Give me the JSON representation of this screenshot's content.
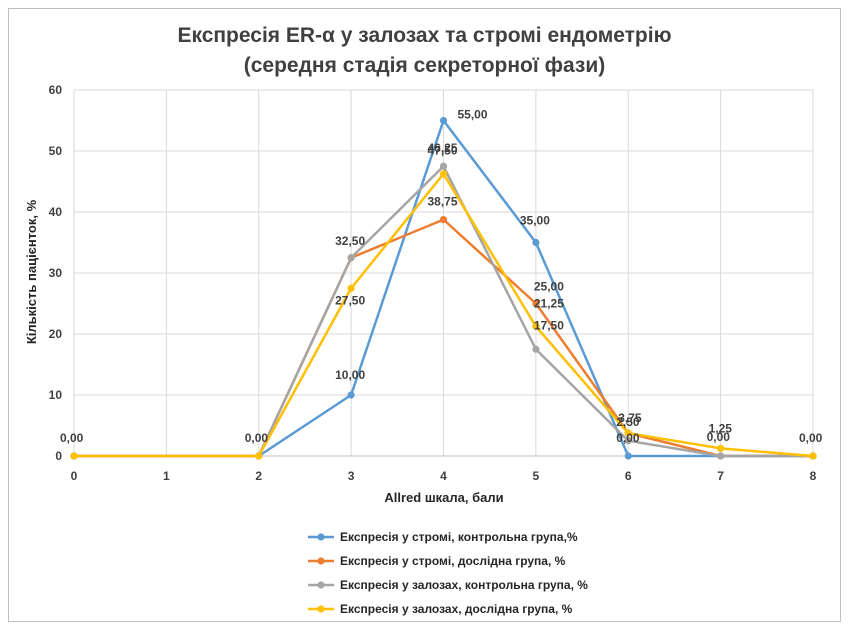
{
  "chart_data": {
    "type": "line",
    "title": "Експресія ER-α у залозах та стромі ендометрію",
    "subtitle": "(середня стадія секреторної фази)",
    "xlabel": "Allred шкала, бали",
    "ylabel": "Кількість пацієнток, %",
    "x": [
      0,
      1,
      2,
      3,
      4,
      5,
      6,
      7,
      8
    ],
    "xlim": [
      0,
      8
    ],
    "ylim": [
      0,
      60
    ],
    "yticks": [
      0,
      10,
      20,
      30,
      40,
      50,
      60
    ],
    "grid": true,
    "legend_position": "bottom",
    "series": [
      {
        "name": "Експресія у стромі, контрольна група,%",
        "color": "#5b9bd5",
        "points": [
          [
            0,
            0
          ],
          [
            2,
            0
          ],
          [
            3,
            10
          ],
          [
            4,
            55
          ],
          [
            5,
            35
          ],
          [
            6,
            0
          ],
          [
            8,
            0
          ]
        ],
        "labels": [
          null,
          "0,00",
          "10,00",
          "55,00",
          "35,00",
          "0,00",
          null
        ]
      },
      {
        "name": "Експресія у стромі, дослідна група, %",
        "color": "#ed7d31",
        "points": [
          [
            0,
            0
          ],
          [
            2,
            0
          ],
          [
            3,
            32.5
          ],
          [
            4,
            38.75
          ],
          [
            5,
            25
          ],
          [
            6,
            3.75
          ],
          [
            7,
            0
          ],
          [
            8,
            0
          ]
        ],
        "labels": [
          null,
          null,
          "32,50",
          "38,75",
          "25,00",
          "3,75",
          null,
          null
        ]
      },
      {
        "name": "Експресія у залозах, контрольна група, %",
        "color": "#a5a5a5",
        "points": [
          [
            0,
            0
          ],
          [
            2,
            0
          ],
          [
            3,
            32.5
          ],
          [
            4,
            47.5
          ],
          [
            5,
            17.5
          ],
          [
            6,
            2.5
          ],
          [
            7,
            0
          ],
          [
            8,
            0
          ]
        ],
        "labels": [
          null,
          null,
          null,
          "47,50",
          "17,50",
          "2,50",
          "0,00",
          null
        ]
      },
      {
        "name": "Експресія у залозах, дослідна група, %",
        "color": "#ffc000",
        "points": [
          [
            0,
            0
          ],
          [
            2,
            0
          ],
          [
            3,
            27.5
          ],
          [
            4,
            46.25
          ],
          [
            5,
            21.25
          ],
          [
            6,
            3.75
          ],
          [
            7,
            1.25
          ],
          [
            8,
            0
          ]
        ],
        "labels": [
          "0,00",
          null,
          "27,50",
          "46,25",
          "21,25",
          null,
          "1,25",
          "0,00"
        ]
      }
    ]
  }
}
